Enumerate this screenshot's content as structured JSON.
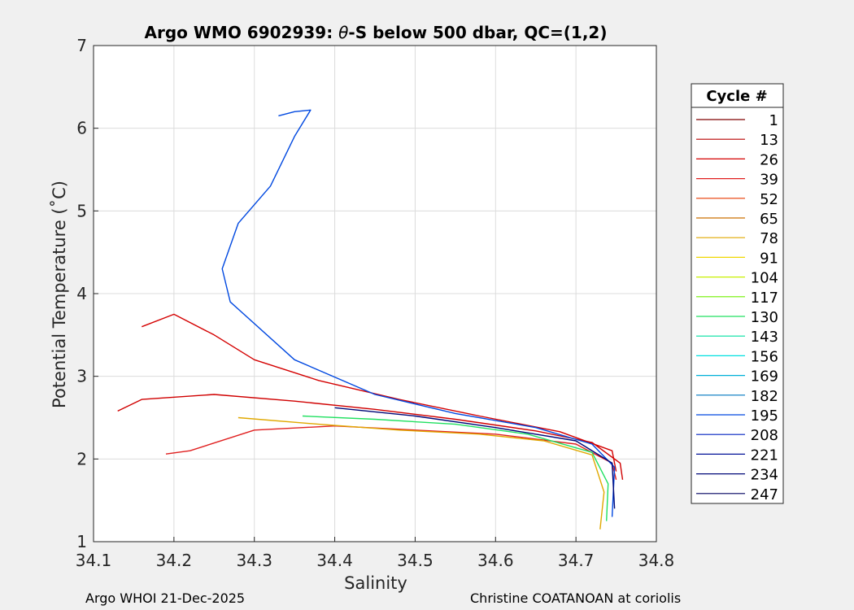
{
  "chart_data": {
    "type": "line",
    "title_prefix": "Argo WMO 6902939: ",
    "title_theta": "θ",
    "title_suffix": "-S below 500 dbar,  QC=(1,2)",
    "xlabel": "Salinity",
    "ylabel": "Potential Temperature (˚C)",
    "xlim": [
      34.1,
      34.8
    ],
    "ylim": [
      1,
      7
    ],
    "xticks": [
      "34.1",
      "34.2",
      "34.3",
      "34.4",
      "34.5",
      "34.6",
      "34.7",
      "34.8"
    ],
    "yticks": [
      "1",
      "2",
      "3",
      "4",
      "5",
      "6",
      "7"
    ],
    "grid": true,
    "legend_position": "right-outside",
    "legend_title": "Cycle #",
    "legend": [
      {
        "label": "1",
        "color": "#800000"
      },
      {
        "label": "13",
        "color": "#b80000"
      },
      {
        "label": "26",
        "color": "#d40000"
      },
      {
        "label": "39",
        "color": "#e02020"
      },
      {
        "label": "52",
        "color": "#e83a00"
      },
      {
        "label": "65",
        "color": "#cc7000"
      },
      {
        "label": "78",
        "color": "#e0a800"
      },
      {
        "label": "91",
        "color": "#f0d800"
      },
      {
        "label": "104",
        "color": "#c8f000"
      },
      {
        "label": "117",
        "color": "#70f000"
      },
      {
        "label": "130",
        "color": "#20e060"
      },
      {
        "label": "143",
        "color": "#00e0a0"
      },
      {
        "label": "156",
        "color": "#00e0e0"
      },
      {
        "label": "169",
        "color": "#00b0d8"
      },
      {
        "label": "182",
        "color": "#0078c0"
      },
      {
        "label": "195",
        "color": "#0048e0"
      },
      {
        "label": "208",
        "color": "#0020c0"
      },
      {
        "label": "221",
        "color": "#001098"
      },
      {
        "label": "234",
        "color": "#000878"
      },
      {
        "label": "247",
        "color": "#000060"
      }
    ],
    "reference_profiles": [
      {
        "cycle": "1",
        "color": "#d00000",
        "points": [
          [
            34.13,
            2.58
          ],
          [
            34.16,
            2.72
          ],
          [
            34.25,
            2.78
          ],
          [
            34.35,
            2.7
          ],
          [
            34.45,
            2.6
          ],
          [
            34.55,
            2.48
          ],
          [
            34.65,
            2.34
          ],
          [
            34.72,
            2.2
          ],
          [
            34.755,
            1.95
          ],
          [
            34.758,
            1.75
          ]
        ]
      },
      {
        "cycle": "26",
        "color": "#e02020",
        "points": [
          [
            34.19,
            2.06
          ],
          [
            34.22,
            2.1
          ],
          [
            34.3,
            2.35
          ],
          [
            34.4,
            2.4
          ],
          [
            34.5,
            2.35
          ],
          [
            34.6,
            2.3
          ],
          [
            34.7,
            2.18
          ],
          [
            34.745,
            1.95
          ],
          [
            34.75,
            1.75
          ]
        ]
      },
      {
        "cycle": "39",
        "color": "#d40000",
        "points": [
          [
            34.16,
            3.6
          ],
          [
            34.2,
            3.75
          ],
          [
            34.25,
            3.5
          ],
          [
            34.3,
            3.2
          ],
          [
            34.38,
            2.95
          ],
          [
            34.48,
            2.72
          ],
          [
            34.58,
            2.52
          ],
          [
            34.68,
            2.33
          ],
          [
            34.745,
            2.1
          ],
          [
            34.75,
            1.85
          ]
        ]
      },
      {
        "cycle": "65",
        "color": "#e0a800",
        "points": [
          [
            34.28,
            2.5
          ],
          [
            34.38,
            2.42
          ],
          [
            34.48,
            2.35
          ],
          [
            34.58,
            2.3
          ],
          [
            34.66,
            2.22
          ],
          [
            34.72,
            2.05
          ],
          [
            34.735,
            1.6
          ],
          [
            34.73,
            1.15
          ]
        ]
      },
      {
        "cycle": "117",
        "color": "#20e060",
        "points": [
          [
            34.36,
            2.52
          ],
          [
            34.45,
            2.48
          ],
          [
            34.55,
            2.42
          ],
          [
            34.64,
            2.3
          ],
          [
            34.72,
            2.08
          ],
          [
            34.74,
            1.7
          ],
          [
            34.738,
            1.25
          ]
        ]
      },
      {
        "cycle": "182",
        "color": "#0048e0",
        "points": [
          [
            34.33,
            6.15
          ],
          [
            34.35,
            6.2
          ],
          [
            34.37,
            6.22
          ],
          [
            34.35,
            5.9
          ],
          [
            34.32,
            5.3
          ],
          [
            34.28,
            4.85
          ],
          [
            34.26,
            4.3
          ],
          [
            34.27,
            3.9
          ],
          [
            34.35,
            3.2
          ],
          [
            34.45,
            2.78
          ],
          [
            34.55,
            2.55
          ],
          [
            34.65,
            2.38
          ],
          [
            34.72,
            2.18
          ],
          [
            34.748,
            1.9
          ],
          [
            34.745,
            1.3
          ]
        ]
      },
      {
        "cycle": "247",
        "color": "#000878",
        "points": [
          [
            34.4,
            2.62
          ],
          [
            34.5,
            2.52
          ],
          [
            34.6,
            2.38
          ],
          [
            34.7,
            2.22
          ],
          [
            34.745,
            1.95
          ],
          [
            34.748,
            1.4
          ]
        ]
      }
    ]
  },
  "footer": {
    "left": "Argo WHOI 21-Dec-2025",
    "right": "Christine COATANOAN at coriolis"
  }
}
